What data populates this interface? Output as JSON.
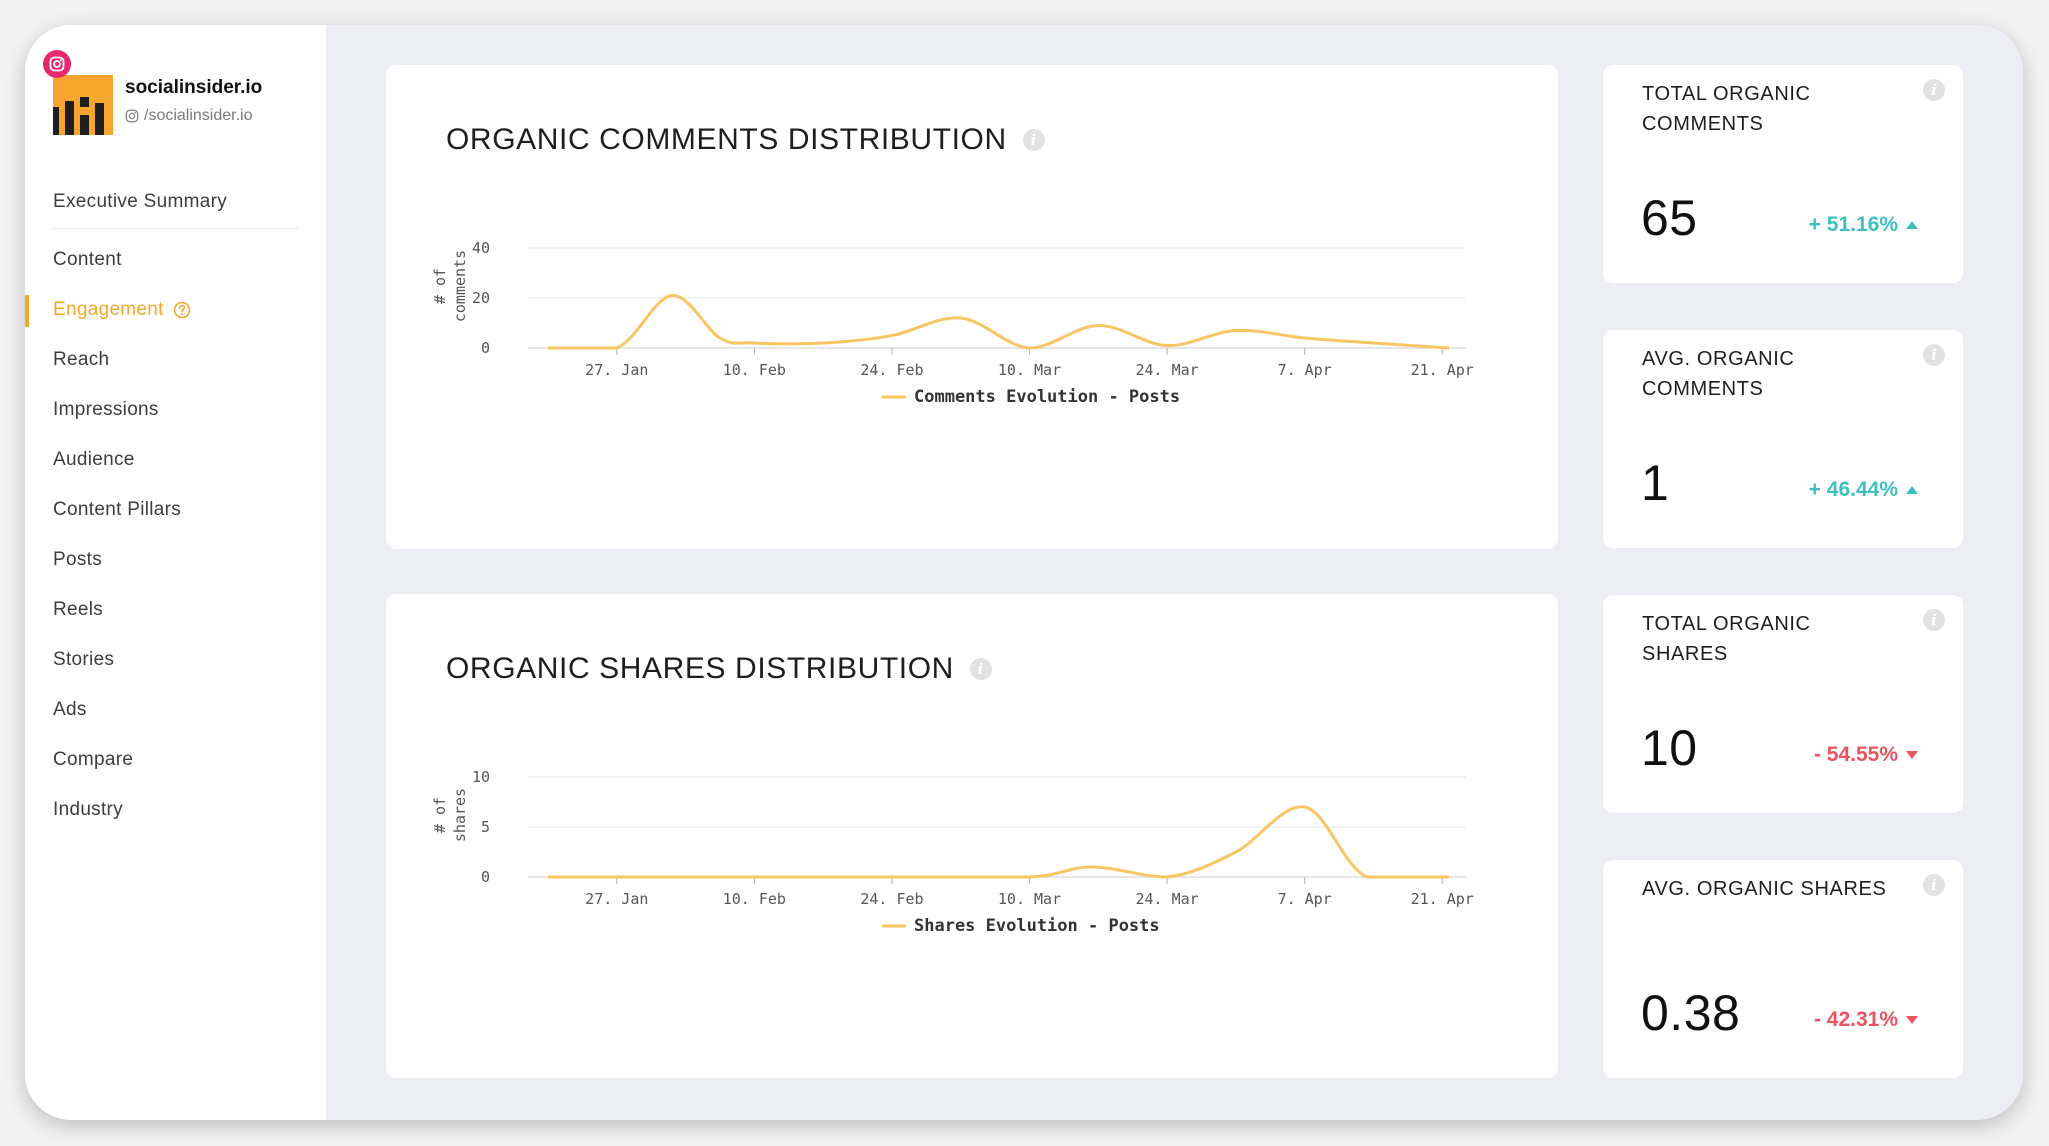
{
  "profile": {
    "name": "socialinsider.io",
    "handle": "/socialinsider.io"
  },
  "nav": {
    "items": [
      {
        "label": "Executive Summary"
      },
      {
        "label": "Content"
      },
      {
        "label": "Engagement"
      },
      {
        "label": "Reach"
      },
      {
        "label": "Impressions"
      },
      {
        "label": "Audience"
      },
      {
        "label": "Content Pillars"
      },
      {
        "label": "Posts"
      },
      {
        "label": "Reels"
      },
      {
        "label": "Stories"
      },
      {
        "label": "Ads"
      },
      {
        "label": "Compare"
      },
      {
        "label": "Industry"
      }
    ],
    "active_index": 2
  },
  "colors": {
    "accent": "#f4a62a",
    "line": "#f9c563",
    "positive": "#3ebfbd",
    "negative": "#e9545f"
  },
  "comments_chart": {
    "title": "ORGANIC COMMENTS DISTRIBUTION"
  },
  "shares_chart": {
    "title": "ORGANIC SHARES DISTRIBUTION"
  },
  "chart_data": [
    {
      "type": "line",
      "title": "ORGANIC COMMENTS DISTRIBUTION",
      "ylabel": "# of comments",
      "xlabel": "",
      "x_ticks": [
        "27. Jan",
        "10. Feb",
        "24. Feb",
        "10. Mar",
        "24. Mar",
        "7. Apr",
        "21. Apr"
      ],
      "y_ticks": [
        0,
        20,
        40
      ],
      "ylim": [
        0,
        40
      ],
      "xlim": [
        -0.5,
        6.1
      ],
      "series": [
        {
          "name": "Comments Evolution - Posts",
          "x": [
            -0.5,
            0,
            0.4,
            0.75,
            1.0,
            1.5,
            2.0,
            2.5,
            3.0,
            3.5,
            4.0,
            4.5,
            5.0,
            5.5,
            6.05
          ],
          "y": [
            0,
            0,
            21,
            4,
            2,
            2,
            5,
            12,
            0,
            9,
            1,
            7,
            4,
            2,
            0
          ]
        }
      ],
      "legend": "bottom-center",
      "grid": true
    },
    {
      "type": "line",
      "title": "ORGANIC SHARES DISTRIBUTION",
      "ylabel": "# of shares",
      "xlabel": "",
      "x_ticks": [
        "27. Jan",
        "10. Feb",
        "24. Feb",
        "10. Mar",
        "24. Mar",
        "7. Apr",
        "21. Apr"
      ],
      "y_ticks": [
        0,
        5,
        10
      ],
      "ylim": [
        0,
        10
      ],
      "xlim": [
        -0.5,
        6.1
      ],
      "series": [
        {
          "name": "Shares Evolution - Posts",
          "x": [
            -0.5,
            0,
            1,
            2,
            3.0,
            3.45,
            4.0,
            4.5,
            5.0,
            5.45,
            6.05
          ],
          "y": [
            0,
            0,
            0,
            0,
            0,
            1,
            0,
            2.5,
            7,
            0,
            0
          ]
        }
      ],
      "legend": "bottom-center",
      "grid": true
    }
  ],
  "stats": [
    {
      "title": "TOTAL ORGANIC COMMENTS",
      "value": "65",
      "change": "+ 51.16%",
      "direction": "up"
    },
    {
      "title": "AVG. ORGANIC COMMENTS",
      "value": "1",
      "change": "+ 46.44%",
      "direction": "up"
    },
    {
      "title": "TOTAL ORGANIC SHARES",
      "value": "10",
      "change": "- 54.55%",
      "direction": "down"
    },
    {
      "title": "AVG. ORGANIC SHARES",
      "value": "0.38",
      "change": "- 42.31%",
      "direction": "down"
    }
  ]
}
